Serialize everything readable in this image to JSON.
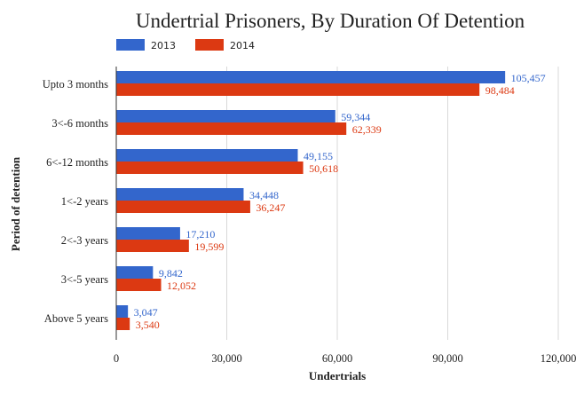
{
  "chart_data": {
    "type": "bar",
    "orientation": "horizontal",
    "title": "Undertrial Prisoners, By Duration Of Detention",
    "xlabel": "Undertrials",
    "ylabel": "Period of detention",
    "categories": [
      "Upto 3 months",
      "3<-6 months",
      "6<-12 months",
      "1<-2 years",
      "2<-3 years",
      "3<-5 years",
      "Above 5 years"
    ],
    "series": [
      {
        "name": "2013",
        "color": "#3366cc",
        "values": [
          105457,
          59344,
          49155,
          34448,
          17210,
          9842,
          3047
        ],
        "labels": [
          "105,457",
          "59,344",
          "49,155",
          "34,448",
          "17,210",
          "9,842",
          "3,047"
        ]
      },
      {
        "name": "2014",
        "color": "#dc3912",
        "values": [
          98484,
          62339,
          50618,
          36247,
          19599,
          12052,
          3540
        ],
        "labels": [
          "98,484",
          "62,339",
          "50,618",
          "36,247",
          "19,599",
          "12,052",
          "3,540"
        ]
      }
    ],
    "xlim": [
      0,
      120000
    ],
    "ticks": [
      0,
      30000,
      60000,
      90000,
      120000
    ],
    "tick_labels": [
      "0",
      "30,000",
      "60,000",
      "90,000",
      "120,000"
    ],
    "grid": true,
    "legend_position": "top-left"
  }
}
